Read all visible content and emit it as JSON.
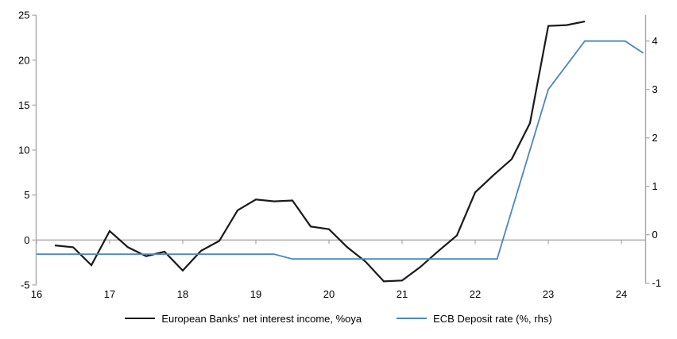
{
  "chart_data": {
    "type": "line",
    "title": "",
    "x_axis": {
      "ticks": [
        16,
        17,
        18,
        19,
        20,
        21,
        22,
        23,
        24
      ],
      "min": 16,
      "max": 24.33
    },
    "left_axis": {
      "ticks": [
        -5,
        0,
        5,
        10,
        15,
        20,
        25
      ],
      "min": -5,
      "max": 25,
      "label": ""
    },
    "right_axis": {
      "ticks": [
        -1,
        0,
        1,
        2,
        3,
        4
      ],
      "min": -1,
      "max": 4.5,
      "label": ""
    },
    "zero_gridline": true,
    "legend_position": "bottom",
    "series": [
      {
        "name": "European Banks' net interest income, %oya",
        "axis": "left",
        "color": "#1a1a1a",
        "points": [
          [
            16.25,
            -0.6
          ],
          [
            16.5,
            -0.8
          ],
          [
            16.75,
            -2.8
          ],
          [
            17.0,
            1.0
          ],
          [
            17.25,
            -0.8
          ],
          [
            17.5,
            -1.8
          ],
          [
            17.75,
            -1.3
          ],
          [
            18.0,
            -3.4
          ],
          [
            18.25,
            -1.2
          ],
          [
            18.5,
            -0.1
          ],
          [
            18.75,
            3.3
          ],
          [
            19.0,
            4.5
          ],
          [
            19.25,
            4.3
          ],
          [
            19.5,
            4.4
          ],
          [
            19.75,
            1.5
          ],
          [
            20.0,
            1.2
          ],
          [
            20.25,
            -0.8
          ],
          [
            20.5,
            -2.4
          ],
          [
            20.75,
            -4.6
          ],
          [
            21.0,
            -4.5
          ],
          [
            21.25,
            -3.0
          ],
          [
            21.5,
            -1.2
          ],
          [
            21.75,
            0.5
          ],
          [
            22.0,
            5.3
          ],
          [
            22.25,
            7.2
          ],
          [
            22.5,
            9.0
          ],
          [
            22.75,
            13.0
          ],
          [
            23.0,
            23.8
          ],
          [
            23.25,
            23.9
          ],
          [
            23.5,
            24.3
          ]
        ]
      },
      {
        "name": "ECB Deposit rate (%, rhs)",
        "axis": "right",
        "color": "#4d86bd",
        "points": [
          [
            16.0,
            -0.4
          ],
          [
            19.25,
            -0.4
          ],
          [
            19.5,
            -0.5
          ],
          [
            22.3,
            -0.5
          ],
          [
            23.0,
            3.0
          ],
          [
            23.5,
            4.0
          ],
          [
            24.05,
            4.0
          ],
          [
            24.3,
            3.75
          ]
        ]
      }
    ]
  },
  "legend": {
    "items": [
      {
        "label": "European Banks' net interest income, %oya",
        "color": "#1a1a1a"
      },
      {
        "label": "ECB Deposit rate (%, rhs)",
        "color": "#4d86bd"
      }
    ]
  },
  "colors": {
    "background": "#ffffff",
    "axis": "#a6a6a6",
    "zero_line": "#a6a6a6",
    "text": "#000000",
    "series_black": "#1a1a1a",
    "series_blue": "#4d86bd"
  }
}
